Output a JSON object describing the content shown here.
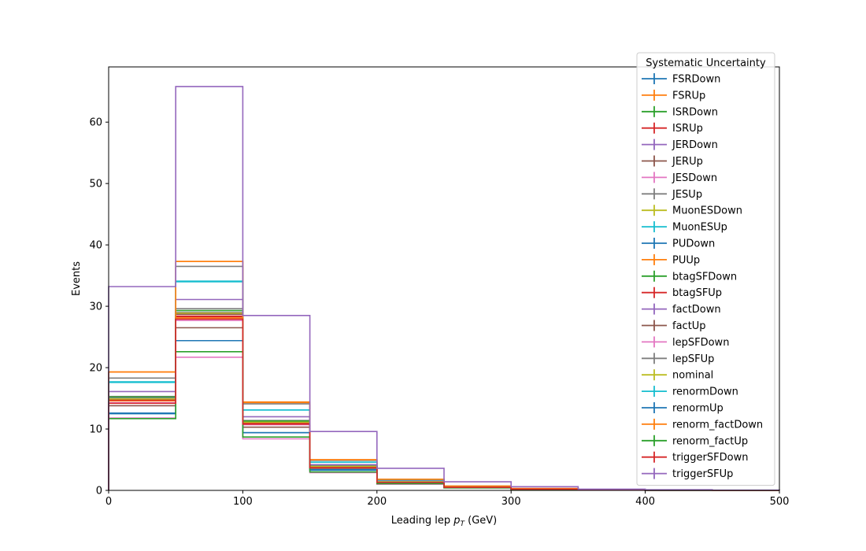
{
  "chart_data": {
    "type": "line",
    "subtype": "step-histogram",
    "xlabel": "Leading lep p_T (GeV)",
    "ylabel": "Events",
    "xlim": [
      0,
      500
    ],
    "ylim": [
      0,
      69
    ],
    "bin_edges": [
      0,
      50,
      100,
      150,
      200,
      250,
      300,
      350,
      400,
      450,
      500
    ],
    "x_ticks": [
      0,
      100,
      200,
      300,
      400,
      500
    ],
    "y_ticks": [
      0,
      10,
      20,
      30,
      40,
      50,
      60
    ],
    "grid": false,
    "legend_title": "Systematic Uncertainty",
    "legend_position": "top-right",
    "series": [
      {
        "name": "FSRDown",
        "color": "#1f77b4",
        "values": [
          12.5,
          24.4,
          9.4,
          3.4,
          1.2,
          0.5,
          0.2,
          0.06,
          0.02,
          0.01
        ]
      },
      {
        "name": "FSRUp",
        "color": "#ff7f0e",
        "values": [
          19.3,
          37.3,
          14.3,
          5.0,
          1.8,
          0.7,
          0.3,
          0.09,
          0.03,
          0.01
        ]
      },
      {
        "name": "ISRDown",
        "color": "#2ca02c",
        "values": [
          14.9,
          28.8,
          11.1,
          3.9,
          1.4,
          0.5,
          0.2,
          0.07,
          0.02,
          0.01
        ]
      },
      {
        "name": "ISRUp",
        "color": "#d62728",
        "values": [
          14.6,
          28.3,
          10.9,
          3.8,
          1.4,
          0.5,
          0.2,
          0.07,
          0.02,
          0.01
        ]
      },
      {
        "name": "JERDown",
        "color": "#9467bd",
        "values": [
          15.0,
          29.0,
          11.2,
          3.9,
          1.4,
          0.5,
          0.2,
          0.07,
          0.02,
          0.01
        ]
      },
      {
        "name": "JERUp",
        "color": "#8c564b",
        "values": [
          14.8,
          28.7,
          11.0,
          3.9,
          1.4,
          0.5,
          0.2,
          0.07,
          0.02,
          0.01
        ]
      },
      {
        "name": "JESDown",
        "color": "#e377c2",
        "values": [
          14.3,
          27.7,
          10.7,
          3.7,
          1.3,
          0.5,
          0.2,
          0.07,
          0.02,
          0.01
        ]
      },
      {
        "name": "JESUp",
        "color": "#7f7f7f",
        "values": [
          15.3,
          29.6,
          11.4,
          4.0,
          1.4,
          0.6,
          0.2,
          0.07,
          0.02,
          0.01
        ]
      },
      {
        "name": "MuonESDown",
        "color": "#bcbd22",
        "values": [
          14.9,
          28.9,
          11.1,
          3.9,
          1.4,
          0.5,
          0.2,
          0.07,
          0.02,
          0.01
        ]
      },
      {
        "name": "MuonESUp",
        "color": "#17becf",
        "values": [
          17.7,
          34.1,
          13.1,
          4.6,
          1.7,
          0.6,
          0.2,
          0.08,
          0.03,
          0.01
        ]
      },
      {
        "name": "PUDown",
        "color": "#1f77b4",
        "values": [
          14.9,
          28.9,
          11.1,
          3.9,
          1.4,
          0.5,
          0.2,
          0.07,
          0.02,
          0.01
        ]
      },
      {
        "name": "PUUp",
        "color": "#ff7f0e",
        "values": [
          14.6,
          28.1,
          10.9,
          3.8,
          1.4,
          0.5,
          0.2,
          0.07,
          0.02,
          0.01
        ]
      },
      {
        "name": "btagSFDown",
        "color": "#2ca02c",
        "values": [
          15.2,
          29.3,
          11.3,
          3.9,
          1.4,
          0.5,
          0.2,
          0.07,
          0.02,
          0.01
        ]
      },
      {
        "name": "btagSFUp",
        "color": "#d62728",
        "values": [
          14.7,
          28.4,
          11.0,
          3.8,
          1.4,
          0.5,
          0.2,
          0.07,
          0.02,
          0.01
        ]
      },
      {
        "name": "factDown",
        "color": "#9467bd",
        "values": [
          16.1,
          31.1,
          12.0,
          4.2,
          1.5,
          0.6,
          0.2,
          0.08,
          0.03,
          0.01
        ]
      },
      {
        "name": "factUp",
        "color": "#8c564b",
        "values": [
          13.8,
          26.5,
          10.3,
          3.6,
          1.3,
          0.5,
          0.2,
          0.06,
          0.02,
          0.01
        ]
      },
      {
        "name": "lepSFDown",
        "color": "#e377c2",
        "values": [
          11.8,
          21.7,
          8.4,
          2.9,
          1.0,
          0.4,
          0.1,
          0.05,
          0.02,
          0.01
        ]
      },
      {
        "name": "lepSFUp",
        "color": "#7f7f7f",
        "values": [
          18.3,
          36.5,
          14.1,
          4.9,
          1.7,
          0.7,
          0.3,
          0.09,
          0.03,
          0.01
        ]
      },
      {
        "name": "nominal",
        "color": "#bcbd22",
        "values": [
          14.9,
          28.9,
          11.1,
          3.9,
          1.4,
          0.5,
          0.2,
          0.07,
          0.02,
          0.01
        ]
      },
      {
        "name": "renormDown",
        "color": "#17becf",
        "values": [
          17.6,
          34.0,
          13.1,
          4.6,
          1.7,
          0.6,
          0.2,
          0.08,
          0.03,
          0.01
        ]
      },
      {
        "name": "renormUp",
        "color": "#1f77b4",
        "values": [
          12.6,
          24.4,
          9.4,
          3.3,
          1.2,
          0.5,
          0.2,
          0.06,
          0.02,
          0.01
        ]
      },
      {
        "name": "renorm_factDown",
        "color": "#ff7f0e",
        "values": [
          19.3,
          37.3,
          14.4,
          5.0,
          1.8,
          0.7,
          0.3,
          0.09,
          0.03,
          0.01
        ]
      },
      {
        "name": "renorm_factUp",
        "color": "#2ca02c",
        "values": [
          11.7,
          22.6,
          8.7,
          3.0,
          1.1,
          0.4,
          0.1,
          0.05,
          0.02,
          0.01
        ]
      },
      {
        "name": "triggerSFDown",
        "color": "#d62728",
        "values": [
          14.2,
          27.9,
          10.8,
          3.7,
          1.3,
          0.5,
          0.2,
          0.07,
          0.02,
          0.01
        ]
      },
      {
        "name": "triggerSFUp",
        "color": "#9467bd",
        "values": [
          33.2,
          65.8,
          28.5,
          9.6,
          3.6,
          1.4,
          0.6,
          0.2,
          0.1,
          0.04
        ]
      }
    ]
  }
}
